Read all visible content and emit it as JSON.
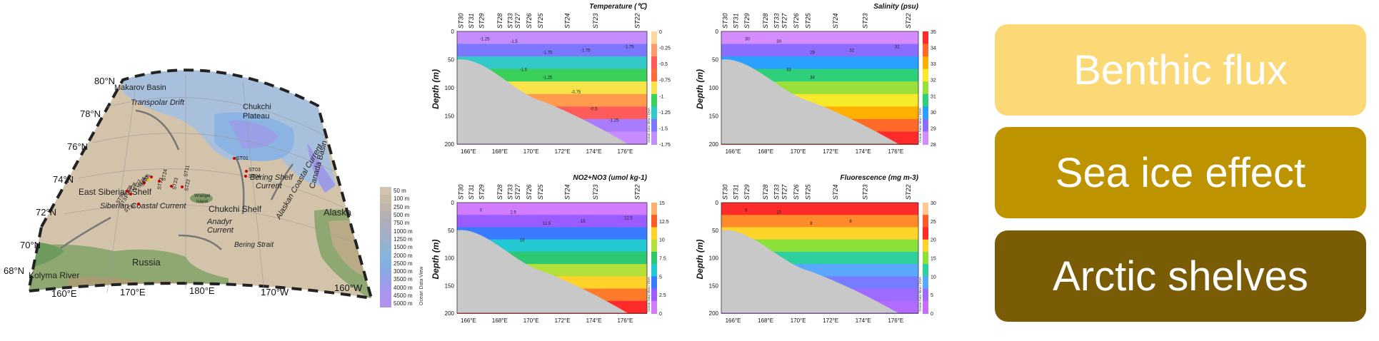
{
  "map": {
    "lat_labels": [
      "80°N",
      "78°N",
      "76°N",
      "74°N",
      "72°N",
      "70°N",
      "68°N"
    ],
    "lon_labels": [
      "160°E",
      "170°E",
      "180°E",
      "170°W",
      "160°W"
    ],
    "regions": {
      "makarov_basin": "Makarov Basin",
      "transpolar_drift": "Transpolar Drift",
      "chukchi_plateau_1": "Chukchi",
      "chukchi_plateau_2": "Plateau",
      "canada_basin": "Canada Basin",
      "east_siberian_shelf": "East Siberian Shelf",
      "siberian_coastal_current": "Siberian Coastal Current",
      "wrangel_1": "Wrangel",
      "wrangel_2": "Island",
      "chukchi_shelf": "Chukchi  Shelf",
      "anadyr_1": "Anadyr",
      "anadyr_2": "Current",
      "bering_shelf_1": "Bering Shelf",
      "bering_shelf_2": "Current",
      "alaskan_coastal": "Alaskan Coastal Current",
      "alaska": "Alaska",
      "kolyma": "Kolyma River",
      "russia": "Russia",
      "bering_strait": "Bering Strait"
    },
    "stations": [
      "ST01",
      "ST03",
      "ST04",
      "ST11",
      "ST13",
      "ST22",
      "ST23",
      "ST24",
      "ST25",
      "ST26",
      "ST27",
      "ST28",
      "ST29",
      "ST30",
      "ST31",
      "ST32",
      "ST33"
    ],
    "depth_legend": [
      "50 m",
      "100 m",
      "250 m",
      "500 m",
      "750 m",
      "1000 m",
      "1250 m",
      "1500 m",
      "2000 m",
      "2500 m",
      "3000 m",
      "3500 m",
      "4000 m",
      "4500 m",
      "5000 m"
    ],
    "depth_colors": [
      "#d2c3ae",
      "#c9bba8",
      "#bfb5ad",
      "#b6b0b4",
      "#aeaeba",
      "#a5aec4",
      "#9cb0cc",
      "#92b2d4",
      "#89b4dc",
      "#84b0e0",
      "#8aa8e4",
      "#95a0e8",
      "#a29aec",
      "#aa96ee",
      "#b093f0"
    ],
    "odv_label": "Ocean Data View"
  },
  "sections": {
    "station_labels": [
      "ST30",
      "ST31",
      "ST29",
      "ST28",
      "ST33",
      "ST27",
      "ST26",
      "ST25",
      "ST24",
      "ST23",
      "ST22"
    ],
    "lon_ticks": [
      "166°E",
      "168°E",
      "170°E",
      "172°E",
      "174°E",
      "176°E"
    ],
    "depth_ticks": [
      "0",
      "50",
      "100",
      "150",
      "200"
    ],
    "ylabel": "Depth (m)",
    "odv_label": "Ocean Data View / DIVA",
    "panels": [
      {
        "title": "Temperature (℃)",
        "colorbar": [
          "0",
          "-0.25",
          "-0.5",
          "-0.75",
          "-1",
          "-1.25",
          "-1.5",
          "-1.75"
        ],
        "contours": [
          "-1.25",
          "-1.5",
          "-1.75",
          "-1.75",
          "-1.75",
          "-1.5",
          "-1.25",
          "-0.75",
          "-0.5",
          "-1.25"
        ]
      },
      {
        "title": "Salinity (psu)",
        "colorbar": [
          "35",
          "34",
          "33",
          "32",
          "31",
          "30",
          "29",
          "28"
        ],
        "contours": [
          "30",
          "30",
          "29",
          "32",
          "31",
          "33",
          "34"
        ]
      },
      {
        "title": "NO2+NO3 (umol kg-1)",
        "colorbar": [
          "15",
          "12.5",
          "10",
          "7.5",
          "5",
          "2.5",
          "0"
        ],
        "contours": [
          "0",
          "2.5",
          "12.5",
          "15",
          "12.5",
          "10"
        ]
      },
      {
        "title": "Fluorescence (mg m-3)",
        "colorbar": [
          "30",
          "25",
          "20",
          "15",
          "10",
          "5",
          "0"
        ],
        "contours": [
          "8",
          "10",
          "8",
          "8"
        ]
      }
    ]
  },
  "keywords": [
    {
      "label": "Benthic flux",
      "color": "#fcd977"
    },
    {
      "label": "Sea ice effect",
      "color": "#bd9400"
    },
    {
      "label": "Arctic shelves",
      "color": "#7a5c06"
    }
  ]
}
